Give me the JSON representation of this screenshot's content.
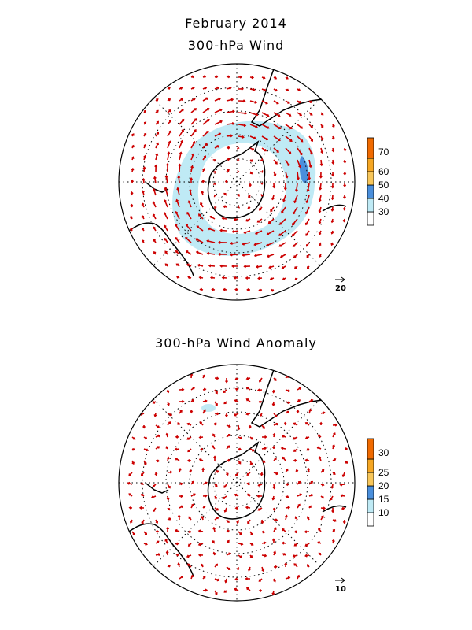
{
  "page_title": "February 2014",
  "panels": [
    {
      "title": "300-hPa Wind",
      "colorbar": {
        "ticks": [
          "30",
          "40",
          "50",
          "60",
          "70"
        ],
        "colors": [
          "#ffffff",
          "#bfeaf5",
          "#9fd3f0",
          "#4a8fdc",
          "#f7c65a",
          "#f5a623",
          "#f06a00"
        ]
      },
      "reference_vector": "20"
    },
    {
      "title": "300-hPa Wind Anomaly",
      "colorbar": {
        "ticks": [
          "10",
          "15",
          "20",
          "25",
          "30"
        ],
        "colors": [
          "#ffffff",
          "#bfeaf5",
          "#9fd3f0",
          "#4a8fdc",
          "#f7c65a",
          "#f5a623",
          "#f06a00"
        ]
      },
      "reference_vector": "10"
    }
  ],
  "colors": {
    "vector": "#cc0000",
    "coast": "#000000",
    "grid": "#000000"
  }
}
